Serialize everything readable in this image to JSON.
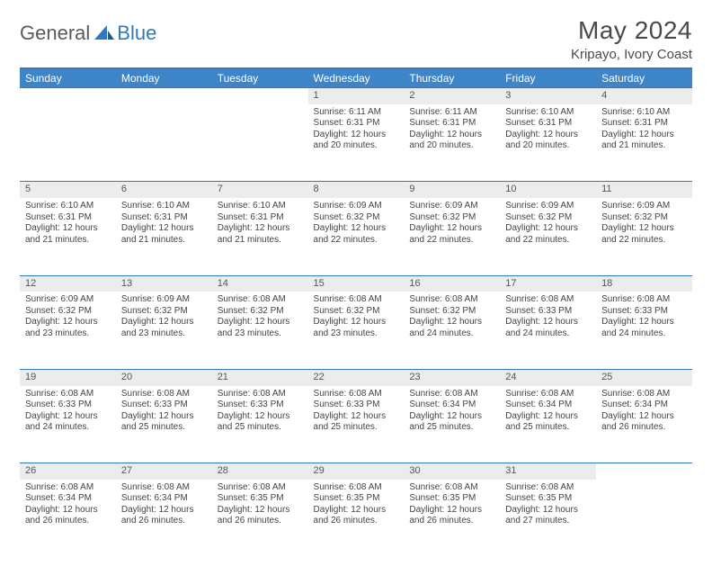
{
  "brand": {
    "part1": "General",
    "part2": "Blue"
  },
  "title": "May 2024",
  "location": "Kripayo, Ivory Coast",
  "colors": {
    "header_bg": "#3d85c6",
    "header_text": "#ffffff",
    "rule": "#2f7abf",
    "daynum_bg": "#ececec",
    "text": "#444444"
  },
  "day_headers": [
    "Sunday",
    "Monday",
    "Tuesday",
    "Wednesday",
    "Thursday",
    "Friday",
    "Saturday"
  ],
  "weeks": [
    [
      null,
      null,
      null,
      {
        "n": "1",
        "sr": "6:11 AM",
        "ss": "6:31 PM",
        "dl": "12 hours and 20 minutes."
      },
      {
        "n": "2",
        "sr": "6:11 AM",
        "ss": "6:31 PM",
        "dl": "12 hours and 20 minutes."
      },
      {
        "n": "3",
        "sr": "6:10 AM",
        "ss": "6:31 PM",
        "dl": "12 hours and 20 minutes."
      },
      {
        "n": "4",
        "sr": "6:10 AM",
        "ss": "6:31 PM",
        "dl": "12 hours and 21 minutes."
      }
    ],
    [
      {
        "n": "5",
        "sr": "6:10 AM",
        "ss": "6:31 PM",
        "dl": "12 hours and 21 minutes."
      },
      {
        "n": "6",
        "sr": "6:10 AM",
        "ss": "6:31 PM",
        "dl": "12 hours and 21 minutes."
      },
      {
        "n": "7",
        "sr": "6:10 AM",
        "ss": "6:31 PM",
        "dl": "12 hours and 21 minutes."
      },
      {
        "n": "8",
        "sr": "6:09 AM",
        "ss": "6:32 PM",
        "dl": "12 hours and 22 minutes."
      },
      {
        "n": "9",
        "sr": "6:09 AM",
        "ss": "6:32 PM",
        "dl": "12 hours and 22 minutes."
      },
      {
        "n": "10",
        "sr": "6:09 AM",
        "ss": "6:32 PM",
        "dl": "12 hours and 22 minutes."
      },
      {
        "n": "11",
        "sr": "6:09 AM",
        "ss": "6:32 PM",
        "dl": "12 hours and 22 minutes."
      }
    ],
    [
      {
        "n": "12",
        "sr": "6:09 AM",
        "ss": "6:32 PM",
        "dl": "12 hours and 23 minutes."
      },
      {
        "n": "13",
        "sr": "6:09 AM",
        "ss": "6:32 PM",
        "dl": "12 hours and 23 minutes."
      },
      {
        "n": "14",
        "sr": "6:08 AM",
        "ss": "6:32 PM",
        "dl": "12 hours and 23 minutes."
      },
      {
        "n": "15",
        "sr": "6:08 AM",
        "ss": "6:32 PM",
        "dl": "12 hours and 23 minutes."
      },
      {
        "n": "16",
        "sr": "6:08 AM",
        "ss": "6:32 PM",
        "dl": "12 hours and 24 minutes."
      },
      {
        "n": "17",
        "sr": "6:08 AM",
        "ss": "6:33 PM",
        "dl": "12 hours and 24 minutes."
      },
      {
        "n": "18",
        "sr": "6:08 AM",
        "ss": "6:33 PM",
        "dl": "12 hours and 24 minutes."
      }
    ],
    [
      {
        "n": "19",
        "sr": "6:08 AM",
        "ss": "6:33 PM",
        "dl": "12 hours and 24 minutes."
      },
      {
        "n": "20",
        "sr": "6:08 AM",
        "ss": "6:33 PM",
        "dl": "12 hours and 25 minutes."
      },
      {
        "n": "21",
        "sr": "6:08 AM",
        "ss": "6:33 PM",
        "dl": "12 hours and 25 minutes."
      },
      {
        "n": "22",
        "sr": "6:08 AM",
        "ss": "6:33 PM",
        "dl": "12 hours and 25 minutes."
      },
      {
        "n": "23",
        "sr": "6:08 AM",
        "ss": "6:34 PM",
        "dl": "12 hours and 25 minutes."
      },
      {
        "n": "24",
        "sr": "6:08 AM",
        "ss": "6:34 PM",
        "dl": "12 hours and 25 minutes."
      },
      {
        "n": "25",
        "sr": "6:08 AM",
        "ss": "6:34 PM",
        "dl": "12 hours and 26 minutes."
      }
    ],
    [
      {
        "n": "26",
        "sr": "6:08 AM",
        "ss": "6:34 PM",
        "dl": "12 hours and 26 minutes."
      },
      {
        "n": "27",
        "sr": "6:08 AM",
        "ss": "6:34 PM",
        "dl": "12 hours and 26 minutes."
      },
      {
        "n": "28",
        "sr": "6:08 AM",
        "ss": "6:35 PM",
        "dl": "12 hours and 26 minutes."
      },
      {
        "n": "29",
        "sr": "6:08 AM",
        "ss": "6:35 PM",
        "dl": "12 hours and 26 minutes."
      },
      {
        "n": "30",
        "sr": "6:08 AM",
        "ss": "6:35 PM",
        "dl": "12 hours and 26 minutes."
      },
      {
        "n": "31",
        "sr": "6:08 AM",
        "ss": "6:35 PM",
        "dl": "12 hours and 27 minutes."
      },
      null
    ]
  ],
  "labels": {
    "sunrise": "Sunrise: ",
    "sunset": "Sunset: ",
    "daylight": "Daylight: "
  }
}
